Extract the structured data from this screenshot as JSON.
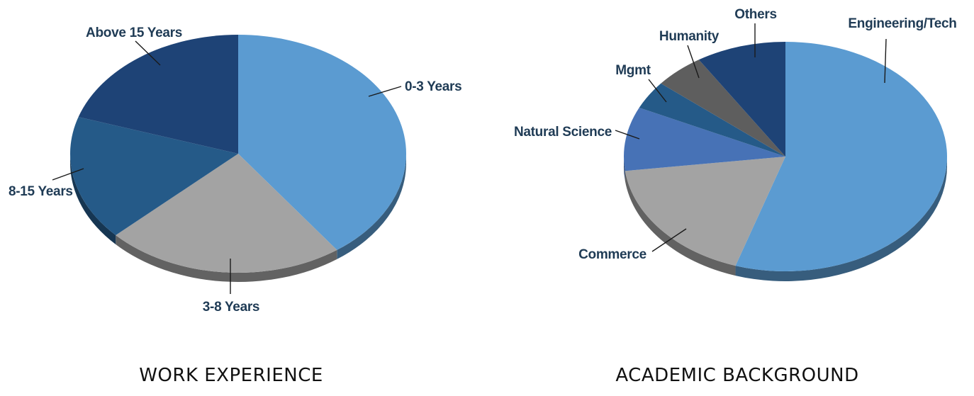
{
  "chart_data": [
    {
      "type": "pie",
      "title": "WORK EXPERIENCE",
      "style": "3d",
      "slices": [
        {
          "label": "0-3 Years",
          "value": 40,
          "color": "#5b9bd1"
        },
        {
          "label": "3-8 Years",
          "value": 23,
          "color": "#a3a3a3"
        },
        {
          "label": "8-15 Years",
          "value": 17,
          "color": "#255a88"
        },
        {
          "label": "Above 15 Years",
          "value": 20,
          "color": "#1e4376"
        }
      ]
    },
    {
      "type": "pie",
      "title": "ACADEMIC BACKGROUND",
      "style": "3d",
      "slices": [
        {
          "label": "Engineering/Tech",
          "value": 55,
          "color": "#5b9bd1"
        },
        {
          "label": "Commerce",
          "value": 18,
          "color": "#a3a3a3"
        },
        {
          "label": "Natural Science",
          "value": 9,
          "color": "#4772b6"
        },
        {
          "label": "Mgmt",
          "value": 4,
          "color": "#255a88"
        },
        {
          "label": "Humanity",
          "value": 5,
          "color": "#5e5e5e"
        },
        {
          "label": "Others",
          "value": 9,
          "color": "#1e4376"
        }
      ]
    }
  ]
}
